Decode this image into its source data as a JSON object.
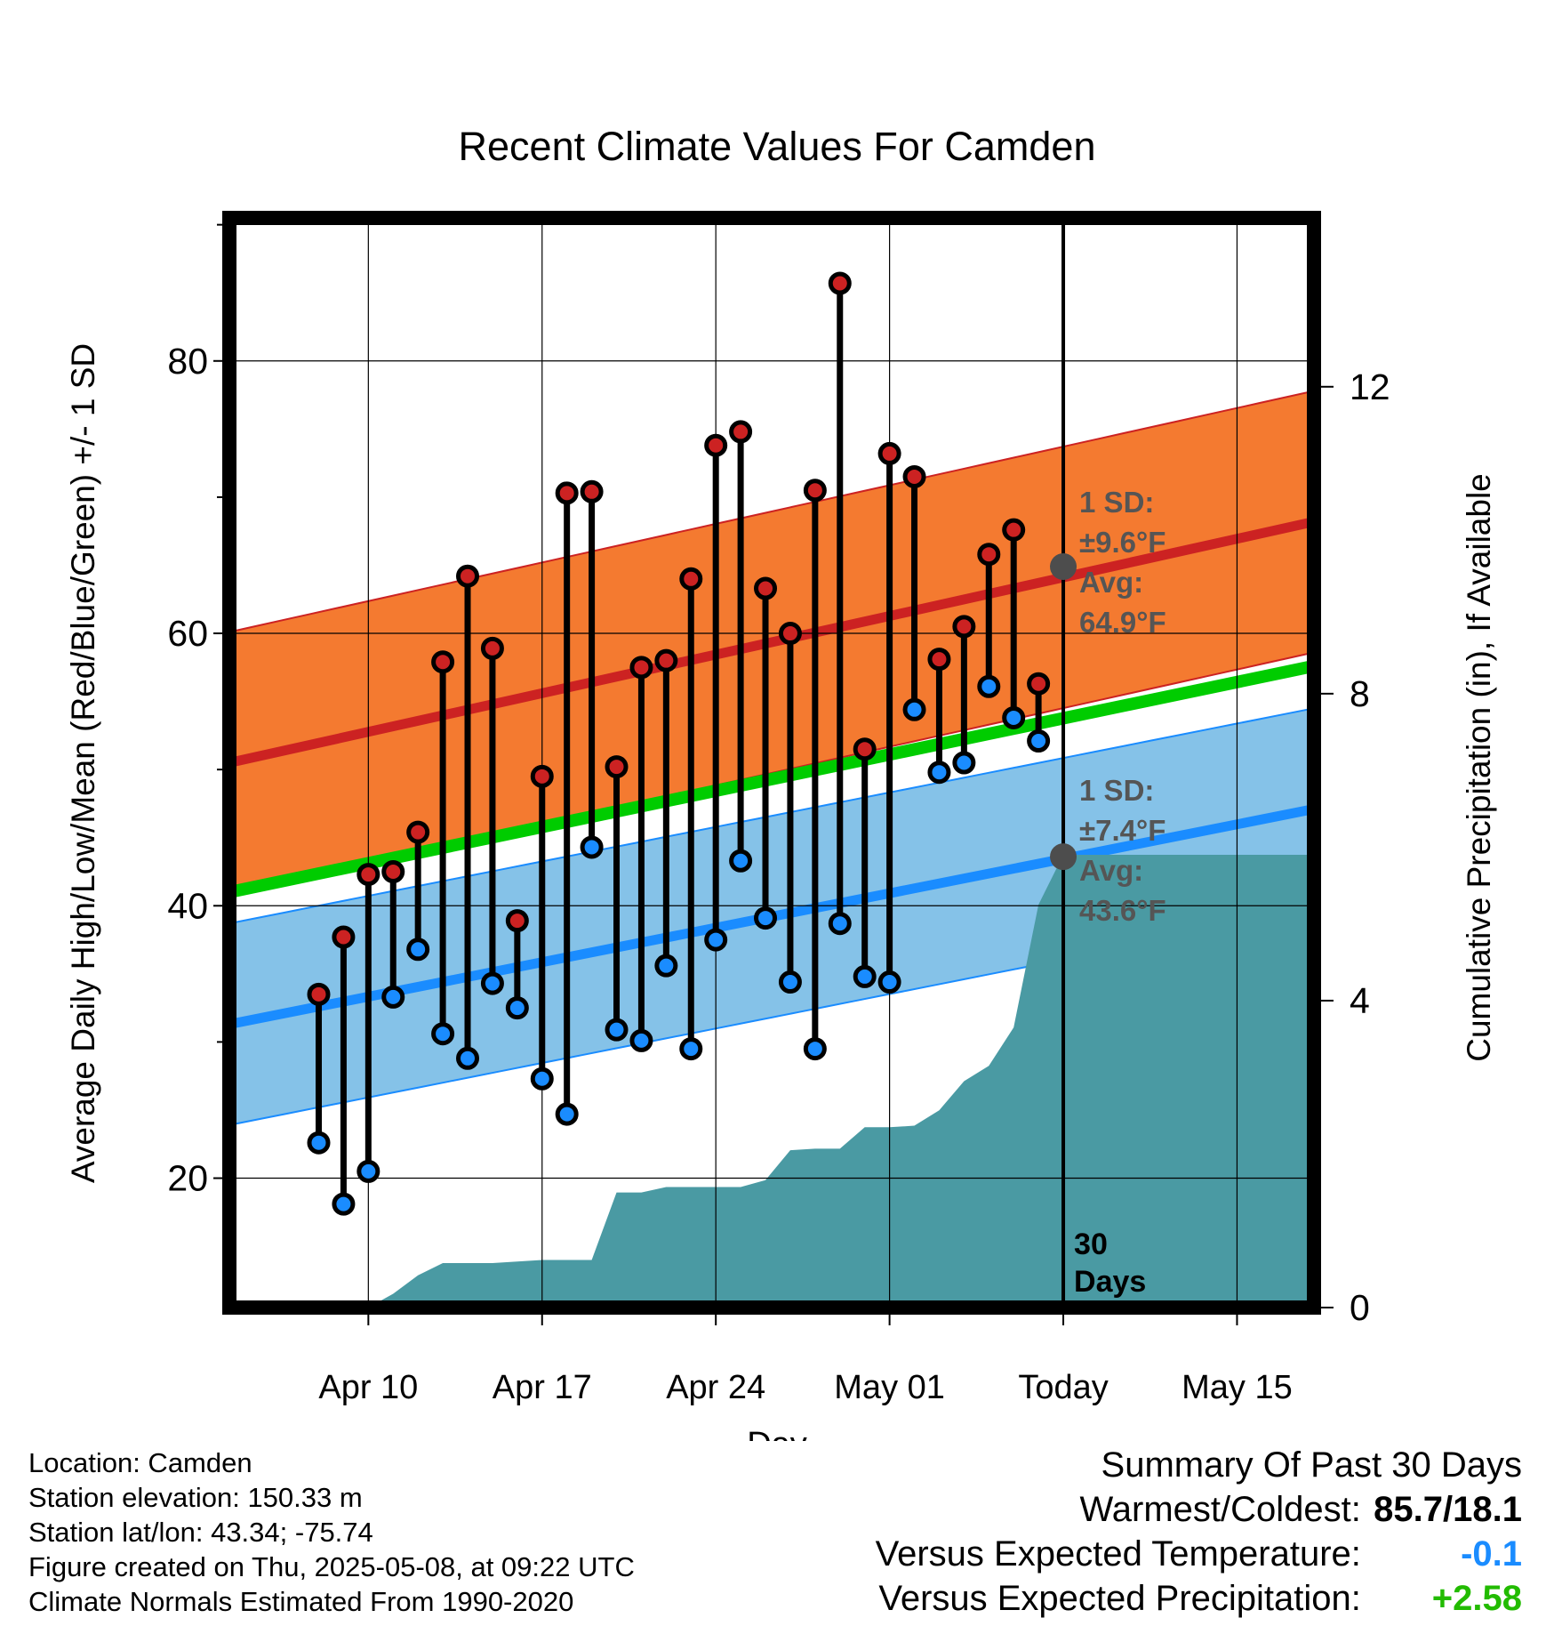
{
  "chart_data": {
    "type": "line",
    "title": "Recent Climate Values For Camden",
    "xlabel": "Day",
    "ylabel_left": "Average Daily High/Low/Mean (Red/Blue/Green) +/- 1 SD",
    "ylabel_right": "Cumulative Precipitation (in), If Available",
    "y_left_range": [
      10.5,
      90.5
    ],
    "y_left_ticks": [
      20,
      40,
      60,
      80
    ],
    "y_right_range": [
      0,
      14.2
    ],
    "y_right_ticks": [
      0,
      4,
      8,
      12
    ],
    "x_range_days": [
      -33.6,
      10.1
    ],
    "x_ticks": [
      {
        "label": "Apr 10",
        "day": -28
      },
      {
        "label": "Apr 17",
        "day": -21
      },
      {
        "label": "Apr 24",
        "day": -14
      },
      {
        "label": "May 01",
        "day": -7
      },
      {
        "label": "Today",
        "day": 0
      },
      {
        "label": "May 15",
        "day": 7
      }
    ],
    "grid": true,
    "daily_highs": [
      33.5,
      37.7,
      42.3,
      42.5,
      45.4,
      57.9,
      64.2,
      58.9,
      38.9,
      49.5,
      70.3,
      70.4,
      50.2,
      57.5,
      58.0,
      64.0,
      73.8,
      74.8,
      63.3,
      60.0,
      70.5,
      85.7,
      51.5,
      73.2,
      71.5,
      58.1,
      60.5,
      65.8,
      67.6,
      56.3
    ],
    "daily_lows": [
      22.6,
      18.1,
      20.5,
      33.3,
      36.8,
      30.6,
      28.8,
      34.3,
      32.5,
      27.3,
      24.7,
      44.3,
      30.9,
      30.1,
      35.6,
      29.5,
      37.5,
      43.3,
      39.1,
      34.4,
      29.5,
      38.7,
      34.8,
      34.4,
      54.4,
      49.8,
      50.5,
      56.1,
      53.8,
      52.1
    ],
    "first_day_offset": -30,
    "normal_high": {
      "start": 50.5,
      "end": 68.2,
      "sd_label": "1 SD:",
      "sd_value": "±9.6°F",
      "avg_label": "Avg:",
      "avg_value": "64.9°F",
      "today_value": 64.9,
      "sd": 9.6
    },
    "normal_low": {
      "start": 31.3,
      "end": 47.1,
      "sd_label": "1 SD:",
      "sd_value": "±7.4°F",
      "avg_label": "Avg:",
      "avg_value": "43.6°F",
      "today_value": 43.6,
      "sd": 7.4
    },
    "normal_mean": {
      "start": 41.0,
      "end": 57.6
    },
    "cumulative_precip": [
      0,
      0.18,
      0.42,
      0.58,
      0.58,
      0.58,
      0.6,
      0.62,
      0.62,
      0.62,
      1.5,
      1.5,
      1.57,
      1.57,
      1.57,
      1.57,
      1.66,
      2.05,
      2.07,
      2.07,
      2.35,
      2.35,
      2.37,
      2.57,
      2.95,
      3.15,
      3.65,
      5.25,
      5.9,
      5.9
    ],
    "precip_first_day_offset": -28,
    "precip_extend_value": 5.9,
    "today_marker": {
      "label_line1": "30",
      "label_line2": "Days"
    },
    "colors": {
      "high": "#cc2222",
      "high_band": "#f47a30",
      "low": "#1a8cff",
      "low_band": "#85c2e8",
      "mean": "#00cc00",
      "precip": "#4a9aa3",
      "avg_marker": "#4d4d4d"
    }
  },
  "info": {
    "location": "Location: Camden",
    "elevation": "Station elevation: 150.33 m",
    "latlon": "Station lat/lon: 43.34; -75.74",
    "created": "Figure created on Thu, 2025-05-08, at 09:22 UTC",
    "normals": "Climate Normals Estimated From 1990-2020"
  },
  "summary": {
    "heading": "Summary Of Past 30 Days",
    "warmest_label": "Warmest/Coldest:",
    "warmest_value": "85.7/18.1",
    "temp_label": "Versus Expected Temperature:",
    "temp_value": "-0.1",
    "temp_color": "#1a8cff",
    "precip_label": "Versus Expected Precipitation:",
    "precip_value": "+2.58",
    "precip_color": "#22bb00"
  }
}
